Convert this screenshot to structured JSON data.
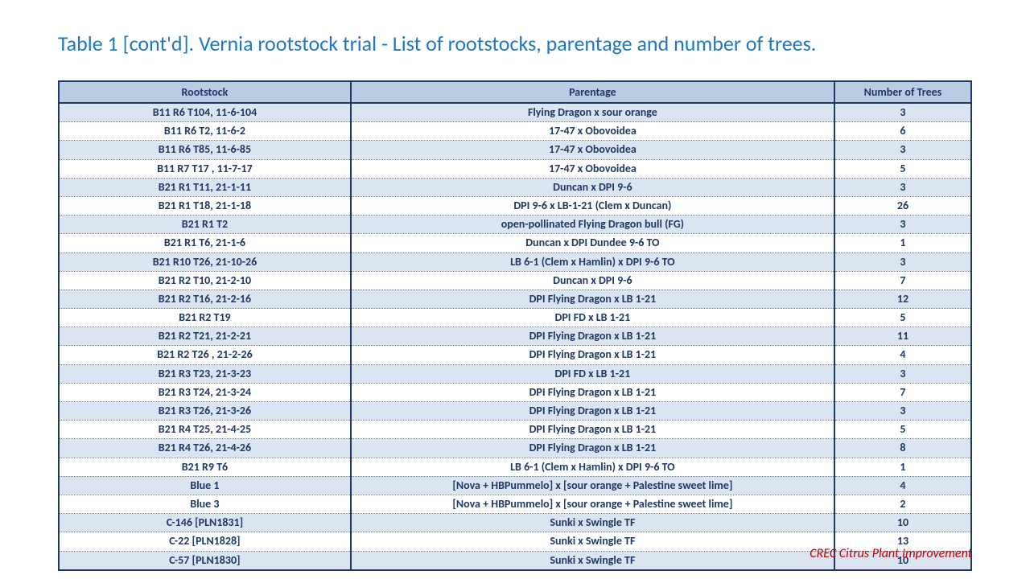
{
  "title": "Table 1 [cont'd]. Vernia rootstock trial - List of rootstocks, parentage and number of trees.",
  "columns": [
    "Rootstock",
    "Parentage",
    "Number of Trees"
  ],
  "rows": [
    {
      "rootstock": "B11 R6 T104, 11-6-104",
      "parentage": "Flying Dragon x sour orange",
      "trees": "3"
    },
    {
      "rootstock": "B11 R6 T2, 11-6-2",
      "parentage": "17-47 x Obovoidea",
      "trees": "6"
    },
    {
      "rootstock": "B11 R6 T85, 11-6-85",
      "parentage": "17-47 x Obovoidea",
      "trees": "3"
    },
    {
      "rootstock": "B11 R7 T17 , 11-7-17",
      "parentage": "17-47 x Obovoidea",
      "trees": "5"
    },
    {
      "rootstock": "B21 R1 T11, 21-1-11",
      "parentage": "Duncan x DPI 9-6",
      "trees": "3"
    },
    {
      "rootstock": "B21 R1 T18, 21-1-18",
      "parentage": "DPI 9-6 x LB-1-21 (Clem x Duncan)",
      "trees": "26"
    },
    {
      "rootstock": "B21 R1 T2",
      "parentage": "open-pollinated Flying Dragon bull (FG)",
      "trees": "3"
    },
    {
      "rootstock": "B21 R1 T6, 21-1-6",
      "parentage": "Duncan x DPI Dundee 9-6 TO",
      "trees": "1"
    },
    {
      "rootstock": "B21 R10 T26, 21-10-26",
      "parentage": "LB 6-1 (Clem x Hamlin) x DPI 9-6 TO",
      "trees": "3"
    },
    {
      "rootstock": "B21 R2 T10, 21-2-10",
      "parentage": "Duncan x DPI 9-6",
      "trees": "7"
    },
    {
      "rootstock": "B21 R2 T16, 21-2-16",
      "parentage": "DPI Flying Dragon x LB 1-21",
      "trees": "12"
    },
    {
      "rootstock": "B21 R2 T19",
      "parentage": "DPI FD x LB 1-21",
      "trees": "5"
    },
    {
      "rootstock": "B21 R2 T21, 21-2-21",
      "parentage": "DPI Flying Dragon x LB 1-21",
      "trees": "11"
    },
    {
      "rootstock": "B21 R2 T26 , 21-2-26",
      "parentage": "DPI Flying Dragon x LB 1-21",
      "trees": "4"
    },
    {
      "rootstock": "B21 R3 T23, 21-3-23",
      "parentage": "DPI FD x LB 1-21",
      "trees": "3"
    },
    {
      "rootstock": "B21 R3 T24, 21-3-24",
      "parentage": "DPI Flying Dragon x LB 1-21",
      "trees": "7"
    },
    {
      "rootstock": "B21 R3 T26, 21-3-26",
      "parentage": "DPI Flying Dragon x LB 1-21",
      "trees": "3"
    },
    {
      "rootstock": "B21 R4 T25, 21-4-25",
      "parentage": "DPI Flying Dragon x LB 1-21",
      "trees": "5"
    },
    {
      "rootstock": "B21 R4 T26, 21-4-26",
      "parentage": "DPI Flying Dragon x LB 1-21",
      "trees": "8"
    },
    {
      "rootstock": "B21 R9 T6",
      "parentage": "LB 6-1 (Clem x Hamlin) x DPI 9-6 TO",
      "trees": "1"
    },
    {
      "rootstock": "Blue 1",
      "parentage": "[Nova + HBPummelo] x [sour orange + Palestine sweet lime]",
      "trees": "4"
    },
    {
      "rootstock": "Blue 3",
      "parentage": "[Nova + HBPummelo] x [sour orange + Palestine sweet lime]",
      "trees": "2"
    },
    {
      "rootstock": "C-146 [PLN1831]",
      "parentage": "Sunki x Swingle TF",
      "trees": "10"
    },
    {
      "rootstock": "C-22 [PLN1828]",
      "parentage": "Sunki x Swingle TF",
      "trees": "13"
    },
    {
      "rootstock": "C-57 [PLN1830]",
      "parentage": "Sunki x Swingle TF",
      "trees": "10"
    }
  ],
  "footer": "CREC Citrus Plant Improvement",
  "style": {
    "title_color": "#1f77c4",
    "header_bg": "#b8cce4",
    "row_shade": "#dbe5f1",
    "border_color": "#1f3864",
    "text_color": "#1f3864",
    "footer_color": "#c00000"
  }
}
